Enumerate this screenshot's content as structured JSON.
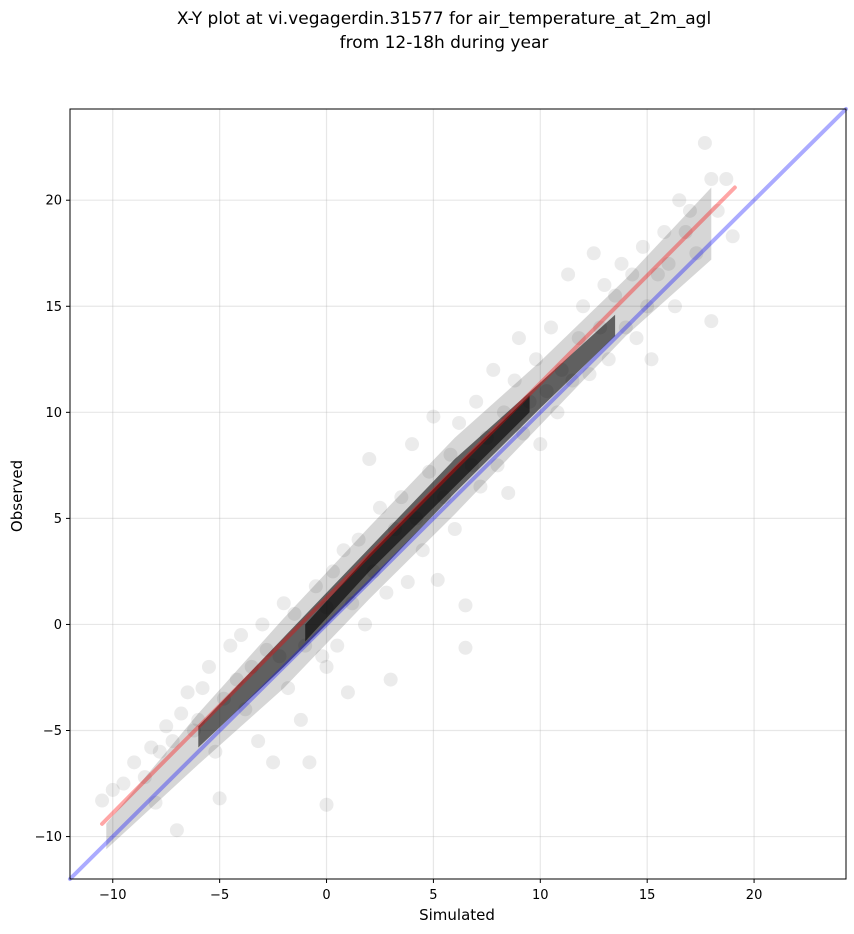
{
  "chart_data": {
    "type": "scatter",
    "title": [
      "X-Y plot at vi.vegagerdin.31577 for air_temperature_at_2m_agl",
      "from 12-18h during year"
    ],
    "xlabel": "Simulated",
    "ylabel": "Observed",
    "xlim": [
      -12.0,
      24.3
    ],
    "ylim": [
      -12.0,
      24.3
    ],
    "xticks": [
      -10,
      -5,
      0,
      5,
      10,
      15,
      20
    ],
    "yticks": [
      -10,
      -5,
      0,
      5,
      10,
      15,
      20
    ],
    "grid": true,
    "point_color": "#000000",
    "point_alpha": 0.08,
    "points": [
      [
        -10.5,
        -8.3
      ],
      [
        -10.0,
        -7.8
      ],
      [
        -9.5,
        -7.5
      ],
      [
        -9.0,
        -6.5
      ],
      [
        -8.5,
        -7.2
      ],
      [
        -8.2,
        -5.8
      ],
      [
        -8.0,
        -8.4
      ],
      [
        -7.8,
        -6.0
      ],
      [
        -7.5,
        -4.8
      ],
      [
        -7.2,
        -5.5
      ],
      [
        -7.0,
        -9.7
      ],
      [
        -6.8,
        -4.2
      ],
      [
        -6.5,
        -3.2
      ],
      [
        -6.2,
        -5.0
      ],
      [
        -6.0,
        -4.5
      ],
      [
        -5.8,
        -3.0
      ],
      [
        -5.5,
        -2.0
      ],
      [
        -5.2,
        -6.0
      ],
      [
        -5.0,
        -8.2
      ],
      [
        -4.8,
        -3.5
      ],
      [
        -4.5,
        -1.0
      ],
      [
        -4.2,
        -2.6
      ],
      [
        -4.0,
        -0.5
      ],
      [
        -3.8,
        -4.0
      ],
      [
        -3.5,
        -2.0
      ],
      [
        -3.2,
        -5.5
      ],
      [
        -3.0,
        0.0
      ],
      [
        -2.8,
        -1.2
      ],
      [
        -2.5,
        -6.5
      ],
      [
        -2.2,
        -1.5
      ],
      [
        -2.0,
        1.0
      ],
      [
        -1.8,
        -3.0
      ],
      [
        -1.5,
        0.5
      ],
      [
        -1.2,
        -4.5
      ],
      [
        -1.0,
        -1.0
      ],
      [
        -0.8,
        -6.5
      ],
      [
        -0.5,
        1.8
      ],
      [
        -0.2,
        -1.5
      ],
      [
        0.0,
        0.8
      ],
      [
        0.0,
        -2.0
      ],
      [
        0.0,
        -8.5
      ],
      [
        0.3,
        2.5
      ],
      [
        0.5,
        -1.0
      ],
      [
        0.8,
        3.5
      ],
      [
        1.0,
        -3.2
      ],
      [
        1.2,
        1.0
      ],
      [
        1.5,
        4.0
      ],
      [
        1.8,
        0.0
      ],
      [
        2.0,
        7.8
      ],
      [
        2.2,
        2.5
      ],
      [
        2.5,
        5.5
      ],
      [
        2.8,
        1.5
      ],
      [
        3.0,
        -2.6
      ],
      [
        3.2,
        4.5
      ],
      [
        3.5,
        6.0
      ],
      [
        3.8,
        2.0
      ],
      [
        4.0,
        8.5
      ],
      [
        4.2,
        5.0
      ],
      [
        4.5,
        3.5
      ],
      [
        4.8,
        7.2
      ],
      [
        5.0,
        9.8
      ],
      [
        5.2,
        2.1
      ],
      [
        5.5,
        6.0
      ],
      [
        5.8,
        8.0
      ],
      [
        6.0,
        4.5
      ],
      [
        6.2,
        9.5
      ],
      [
        6.5,
        0.9
      ],
      [
        6.5,
        -1.1
      ],
      [
        6.8,
        7.5
      ],
      [
        7.0,
        10.5
      ],
      [
        7.2,
        6.5
      ],
      [
        7.5,
        8.8
      ],
      [
        7.8,
        12.0
      ],
      [
        8.0,
        7.5
      ],
      [
        8.3,
        10.0
      ],
      [
        8.5,
        6.2
      ],
      [
        8.8,
        11.5
      ],
      [
        9.0,
        13.5
      ],
      [
        9.2,
        9.0
      ],
      [
        9.5,
        10.5
      ],
      [
        9.8,
        12.5
      ],
      [
        10.0,
        8.5
      ],
      [
        10.3,
        11.0
      ],
      [
        10.5,
        14.0
      ],
      [
        10.8,
        10.0
      ],
      [
        11.0,
        12.0
      ],
      [
        11.3,
        16.5
      ],
      [
        11.5,
        11.5
      ],
      [
        11.8,
        13.5
      ],
      [
        12.0,
        15.0
      ],
      [
        12.3,
        11.8
      ],
      [
        12.5,
        17.5
      ],
      [
        12.8,
        14.0
      ],
      [
        13.0,
        16.0
      ],
      [
        13.2,
        12.5
      ],
      [
        13.5,
        15.5
      ],
      [
        13.8,
        17.0
      ],
      [
        14.0,
        14.0
      ],
      [
        14.3,
        16.5
      ],
      [
        14.5,
        13.5
      ],
      [
        14.8,
        17.8
      ],
      [
        15.0,
        15.0
      ],
      [
        15.2,
        12.5
      ],
      [
        15.5,
        16.5
      ],
      [
        15.8,
        18.5
      ],
      [
        16.0,
        17.0
      ],
      [
        16.3,
        15.0
      ],
      [
        16.5,
        20.0
      ],
      [
        16.8,
        18.5
      ],
      [
        17.0,
        19.5
      ],
      [
        17.3,
        17.5
      ],
      [
        17.7,
        22.7
      ],
      [
        18.0,
        21.0
      ],
      [
        18.0,
        14.3
      ],
      [
        18.3,
        19.5
      ],
      [
        18.7,
        21.0
      ],
      [
        19.0,
        18.3
      ]
    ],
    "lines": [
      {
        "name": "",
        "color": "#ff0000",
        "alpha": 0.35,
        "x": [
          -10.5,
          19.1
        ],
        "y": [
          -9.4,
          20.6
        ]
      },
      {
        "name": "",
        "color": "#0000ff",
        "alpha": 0.33,
        "x": [
          -12.0,
          24.3
        ],
        "y": [
          -12.0,
          24.3
        ]
      }
    ]
  }
}
